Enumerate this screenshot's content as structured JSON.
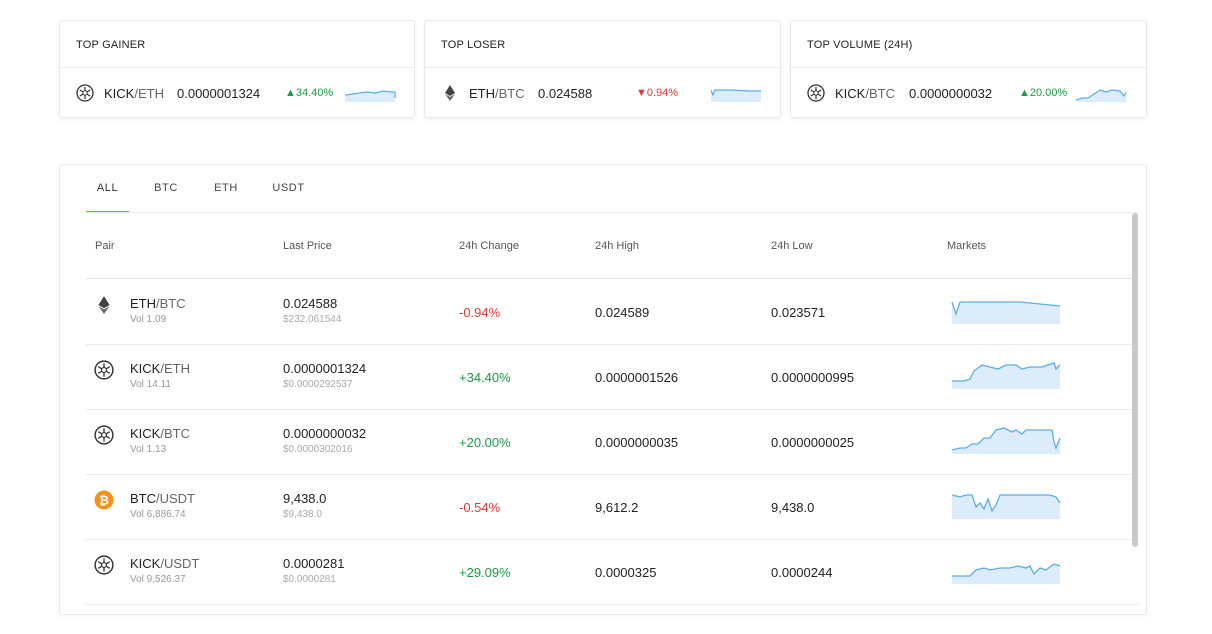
{
  "cards": [
    {
      "title": "TOP GAINER",
      "base": "KICK",
      "quote": "/ETH",
      "coin_icon": "kick-icon",
      "price": "0.0000001324",
      "change": "34.40%",
      "direction": "up"
    },
    {
      "title": "TOP LOSER",
      "base": "ETH",
      "quote": "/BTC",
      "coin_icon": "eth-icon",
      "price": "0.024588",
      "change": "0.94%",
      "direction": "down"
    },
    {
      "title": "TOP VOLUME (24H)",
      "base": "KICK",
      "quote": "/BTC",
      "coin_icon": "kick-icon",
      "price": "0.0000000032",
      "change": "20.00%",
      "direction": "up"
    }
  ],
  "tabs": [
    {
      "label": "ALL",
      "active": true
    },
    {
      "label": "BTC",
      "active": false
    },
    {
      "label": "ETH",
      "active": false
    },
    {
      "label": "USDT",
      "active": false
    }
  ],
  "columns": [
    "Pair",
    "Last Price",
    "24h Change",
    "24h High",
    "24h Low",
    "Markets"
  ],
  "rows": [
    {
      "coin_icon": "eth-icon",
      "base": "ETH",
      "quote": "/BTC",
      "vol": "Vol 1.09",
      "last": "0.024588",
      "last_usd": "$232.061544",
      "change": "-0.94%",
      "direction": "down",
      "high": "0.024589",
      "low": "0.023571"
    },
    {
      "coin_icon": "kick-icon",
      "base": "KICK",
      "quote": "/ETH",
      "vol": "Vol 14.11",
      "last": "0.0000001324",
      "last_usd": "$0.0000292537",
      "change": "+34.40%",
      "direction": "up",
      "high": "0.0000001526",
      "low": "0.0000000995"
    },
    {
      "coin_icon": "kick-icon",
      "base": "KICK",
      "quote": "/BTC",
      "vol": "Vol 1.13",
      "last": "0.0000000032",
      "last_usd": "$0.0000302016",
      "change": "+20.00%",
      "direction": "up",
      "high": "0.0000000035",
      "low": "0.0000000025"
    },
    {
      "coin_icon": "btc-icon",
      "base": "BTC",
      "quote": "/USDT",
      "vol": "Vol 6,886.74",
      "last": "9,438.0",
      "last_usd": "$9,438.0",
      "change": "-0.54%",
      "direction": "down",
      "high": "9,612.2",
      "low": "9,438.0"
    },
    {
      "coin_icon": "kick-icon",
      "base": "KICK",
      "quote": "/USDT",
      "vol": "Vol 9,526.37",
      "last": "0.0000281",
      "last_usd": "$0.0000281",
      "change": "+29.09%",
      "direction": "up",
      "high": "0.0000325",
      "low": "0.0000244"
    }
  ],
  "colors": {
    "up": "#1e9a46",
    "down": "#e23a3a",
    "tab_accent": "#6db33f",
    "sparkline": "#5aaee8",
    "btc": "#f7931a"
  }
}
